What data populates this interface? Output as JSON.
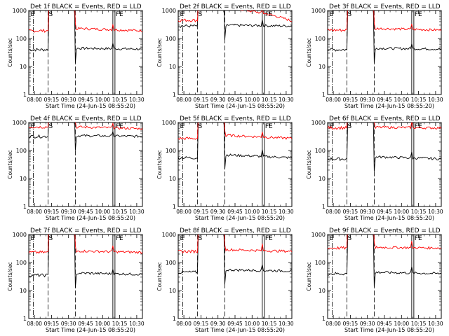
{
  "figure": {
    "xlabel": "Start Time (24-Jun-15 08:55:20)",
    "ylabel": "Counts/sec",
    "x_ticks": [
      "08:00",
      "09:15",
      "09:30",
      "09:45",
      "10:00",
      "10:15",
      "10:30"
    ],
    "y_ticks": [
      "1",
      "10",
      "100",
      "1000"
    ],
    "marker_labels": [
      "E",
      "S",
      "FE"
    ],
    "colors": {
      "events": "#000000",
      "lld": "#ff0000",
      "background": "#ffffff"
    }
  },
  "chart_data": [
    {
      "type": "line",
      "title": "Det 1f BLACK = Events, RED = LLD",
      "y_scale": "log",
      "ylim": [
        1,
        1000
      ],
      "xlim": [
        "08:55",
        "10:35"
      ],
      "markers": {
        "E": "08:59",
        "S": "09:12",
        "dash2": "09:36",
        "FE": "10:09"
      },
      "series": [
        {
          "name": "Events",
          "pre": 40,
          "post": 45,
          "post_end": 42
        },
        {
          "name": "LLD",
          "pre": 190,
          "post": 230,
          "post_end": 190
        }
      ]
    },
    {
      "type": "line",
      "title": "Det 2f BLACK = Events, RED = LLD",
      "y_scale": "log",
      "ylim": [
        1,
        1000
      ],
      "xlim": [
        "08:55",
        "10:35"
      ],
      "markers": {
        "E": "08:59",
        "S": "09:12",
        "dash2": "09:36",
        "FE": "10:09"
      },
      "series": [
        {
          "name": "Events",
          "pre": 280,
          "post": 300,
          "post_end": 280
        },
        {
          "name": "LLD",
          "pre": 450,
          "post": 1300,
          "post_end": 420
        }
      ]
    },
    {
      "type": "line",
      "title": "Det 3f BLACK = Events, RED = LLD",
      "y_scale": "log",
      "ylim": [
        1,
        1000
      ],
      "xlim": [
        "08:55",
        "10:35"
      ],
      "markers": {
        "E": "08:59",
        "S": "09:12",
        "dash2": "09:36",
        "FE": "10:09"
      },
      "series": [
        {
          "name": "Events",
          "pre": 40,
          "post": 45,
          "post_end": 42
        },
        {
          "name": "LLD",
          "pre": 200,
          "post": 230,
          "post_end": 200
        }
      ]
    },
    {
      "type": "line",
      "title": "Det 4f BLACK = Events, RED = LLD",
      "y_scale": "log",
      "ylim": [
        1,
        1000
      ],
      "xlim": [
        "08:55",
        "10:35"
      ],
      "markers": {
        "E": "08:59",
        "S": "09:12",
        "dash2": "09:36",
        "FE": "10:09"
      },
      "series": [
        {
          "name": "Events",
          "pre": 320,
          "post": 340,
          "post_end": 320
        },
        {
          "name": "LLD",
          "pre": 700,
          "post": 700,
          "post_end": 600
        }
      ]
    },
    {
      "type": "line",
      "title": "Det 5f BLACK = Events, RED = LLD",
      "y_scale": "log",
      "ylim": [
        1,
        1000
      ],
      "xlim": [
        "08:55",
        "10:35"
      ],
      "markers": {
        "E": "08:59",
        "S": "09:12",
        "dash2": "09:36",
        "FE": "10:09"
      },
      "series": [
        {
          "name": "Events",
          "pre": 55,
          "post": 70,
          "post_end": 55
        },
        {
          "name": "LLD",
          "pre": 270,
          "post": 350,
          "post_end": 270
        }
      ]
    },
    {
      "type": "line",
      "title": "Det 6f BLACK = Events, RED = LLD",
      "y_scale": "log",
      "ylim": [
        1,
        1000
      ],
      "xlim": [
        "08:55",
        "10:35"
      ],
      "markers": {
        "E": "08:59",
        "S": "09:12",
        "dash2": "09:36",
        "FE": "10:09"
      },
      "series": [
        {
          "name": "Events",
          "pre": 50,
          "post": 60,
          "post_end": 50
        },
        {
          "name": "LLD",
          "pre": 650,
          "post": 680,
          "post_end": 640
        }
      ]
    },
    {
      "type": "line",
      "title": "Det 7f BLACK = Events, RED = LLD",
      "y_scale": "log",
      "ylim": [
        1,
        1000
      ],
      "xlim": [
        "08:55",
        "10:35"
      ],
      "markers": {
        "E": "08:59",
        "S": "09:12",
        "dash2": "09:36",
        "FE": "10:09"
      },
      "series": [
        {
          "name": "Events",
          "pre": 35,
          "post": 42,
          "post_end": 38
        },
        {
          "name": "LLD",
          "pre": 230,
          "post": 260,
          "post_end": 230
        }
      ]
    },
    {
      "type": "line",
      "title": "Det 8f BLACK = Events, RED = LLD",
      "y_scale": "log",
      "ylim": [
        1,
        1000
      ],
      "xlim": [
        "08:55",
        "10:35"
      ],
      "markers": {
        "E": "08:59",
        "S": "09:12",
        "dash2": "09:36",
        "FE": "10:09"
      },
      "series": [
        {
          "name": "Events",
          "pre": 45,
          "post": 55,
          "post_end": 50
        },
        {
          "name": "LLD",
          "pre": 250,
          "post": 290,
          "post_end": 250
        }
      ]
    },
    {
      "type": "line",
      "title": "Det 9f BLACK = Events, RED = LLD",
      "y_scale": "log",
      "ylim": [
        1,
        1000
      ],
      "xlim": [
        "08:55",
        "10:35"
      ],
      "markers": {
        "E": "08:59",
        "S": "09:12",
        "dash2": "09:36",
        "FE": "10:09"
      },
      "series": [
        {
          "name": "Events",
          "pre": 40,
          "post": 45,
          "post_end": 40
        },
        {
          "name": "LLD",
          "pre": 330,
          "post": 350,
          "post_end": 330
        }
      ]
    }
  ]
}
